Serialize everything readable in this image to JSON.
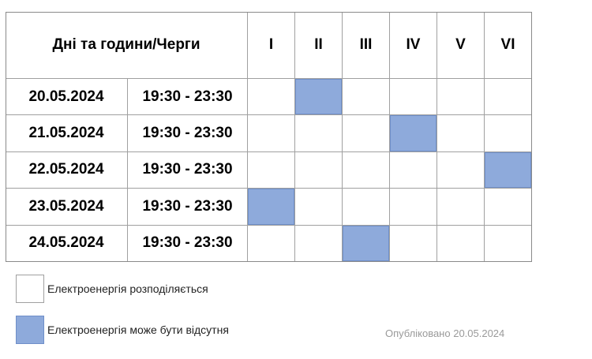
{
  "table": {
    "header": {
      "label": "Дні та години/Черги",
      "queues": [
        "I",
        "II",
        "III",
        "IV",
        "V",
        "VI"
      ]
    },
    "rows": [
      {
        "date": "20.05.2024",
        "time": "19:30 - 23:30",
        "off": [
          false,
          true,
          false,
          false,
          false,
          false
        ]
      },
      {
        "date": "21.05.2024",
        "time": "19:30 - 23:30",
        "off": [
          false,
          false,
          false,
          true,
          false,
          false
        ]
      },
      {
        "date": "22.05.2024",
        "time": "19:30 - 23:30",
        "off": [
          false,
          false,
          false,
          false,
          false,
          true
        ]
      },
      {
        "date": "23.05.2024",
        "time": "19:30 - 23:30",
        "off": [
          true,
          false,
          false,
          false,
          false,
          false
        ]
      },
      {
        "date": "24.05.2024",
        "time": "19:30 - 23:30",
        "off": [
          false,
          false,
          true,
          false,
          false,
          false
        ]
      }
    ]
  },
  "legend": [
    {
      "label": "Електроенергія розподіляється",
      "off": false
    },
    {
      "label": "Електроенергія може бути відсутня",
      "off": true
    }
  ],
  "published": "Опубліковано 20.05.2024"
}
